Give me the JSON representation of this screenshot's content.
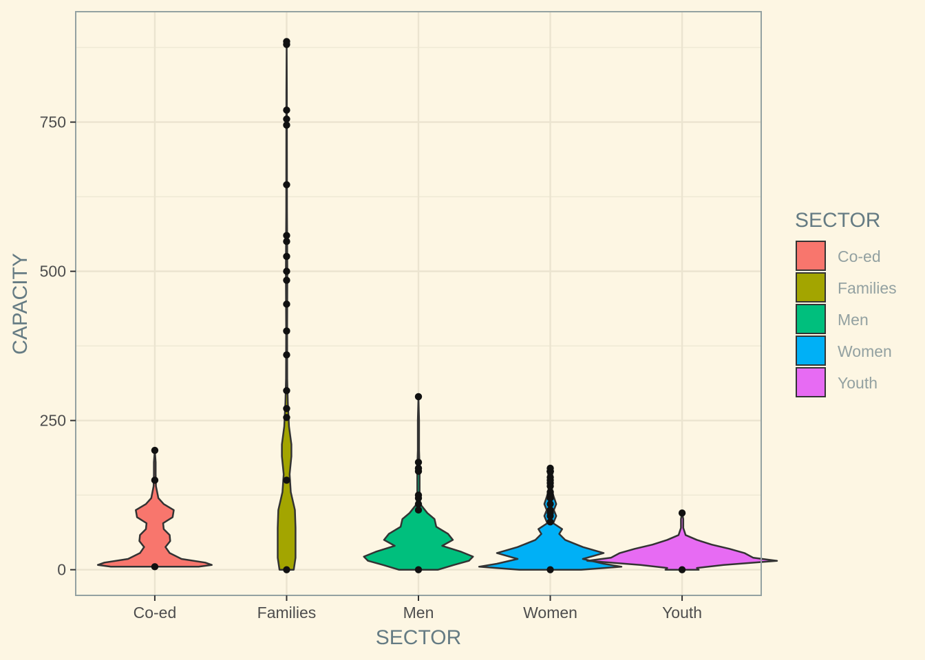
{
  "chart_data": {
    "type": "violin",
    "xlabel": "SECTOR",
    "ylabel": "CAPACITY",
    "ylim": [
      -43,
      935
    ],
    "y_ticks": [
      0,
      250,
      500,
      750
    ],
    "y_minor_ticks": [
      125,
      375,
      625,
      875
    ],
    "grid": true,
    "legend": {
      "title": "SECTOR",
      "position": "right"
    },
    "categories": [
      "Co-ed",
      "Families",
      "Men",
      "Women",
      "Youth"
    ],
    "colors": {
      "Co-ed": "#f8766d",
      "Families": "#a3a500",
      "Men": "#00bf7d",
      "Women": "#00b0f6",
      "Youth": "#e76bf3"
    },
    "violins": [
      {
        "name": "Co-ed",
        "min": 5,
        "max": 200,
        "profile": [
          [
            5,
            0.74
          ],
          [
            8,
            0.96
          ],
          [
            12,
            0.85
          ],
          [
            18,
            0.45
          ],
          [
            28,
            0.25
          ],
          [
            38,
            0.18
          ],
          [
            48,
            0.26
          ],
          [
            58,
            0.25
          ],
          [
            68,
            0.15
          ],
          [
            78,
            0.14
          ],
          [
            88,
            0.3
          ],
          [
            100,
            0.32
          ],
          [
            110,
            0.15
          ],
          [
            120,
            0.06
          ],
          [
            140,
            0.02
          ],
          [
            160,
            0.015
          ],
          [
            180,
            0.015
          ],
          [
            200,
            0.0
          ]
        ],
        "points": [
          5,
          150,
          200
        ]
      },
      {
        "name": "Families",
        "min": 0,
        "max": 885,
        "profile": [
          [
            0,
            0.12
          ],
          [
            20,
            0.15
          ],
          [
            40,
            0.15
          ],
          [
            70,
            0.15
          ],
          [
            100,
            0.14
          ],
          [
            130,
            0.07
          ],
          [
            160,
            0.05
          ],
          [
            190,
            0.08
          ],
          [
            210,
            0.08
          ],
          [
            240,
            0.04
          ],
          [
            280,
            0.02
          ],
          [
            320,
            0.01
          ],
          [
            400,
            0.008
          ],
          [
            500,
            0.012
          ],
          [
            600,
            0.006
          ],
          [
            700,
            0.005
          ],
          [
            800,
            0.004
          ],
          [
            885,
            0.0
          ]
        ],
        "points": [
          0,
          150,
          255,
          270,
          300,
          360,
          400,
          445,
          485,
          500,
          525,
          550,
          560,
          645,
          745,
          755,
          770,
          880,
          885
        ]
      },
      {
        "name": "Men",
        "min": 0,
        "max": 290,
        "profile": [
          [
            0,
            0.33
          ],
          [
            8,
            0.6
          ],
          [
            15,
            0.85
          ],
          [
            22,
            0.92
          ],
          [
            30,
            0.72
          ],
          [
            40,
            0.4
          ],
          [
            50,
            0.58
          ],
          [
            60,
            0.5
          ],
          [
            72,
            0.3
          ],
          [
            85,
            0.27
          ],
          [
            95,
            0.15
          ],
          [
            110,
            0.03
          ],
          [
            130,
            0.02
          ],
          [
            170,
            0.02
          ],
          [
            200,
            0.01
          ],
          [
            250,
            0.01
          ],
          [
            290,
            0.0
          ]
        ],
        "points": [
          0,
          100,
          110,
          120,
          125,
          165,
          170,
          180,
          290
        ]
      },
      {
        "name": "Women",
        "min": 0,
        "max": 170,
        "profile": [
          [
            0,
            0.52
          ],
          [
            5,
            1.2
          ],
          [
            10,
            0.9
          ],
          [
            18,
            0.55
          ],
          [
            28,
            0.9
          ],
          [
            38,
            0.55
          ],
          [
            50,
            0.25
          ],
          [
            60,
            0.15
          ],
          [
            68,
            0.2
          ],
          [
            78,
            0.05
          ],
          [
            90,
            0.1
          ],
          [
            100,
            0.06
          ],
          [
            110,
            0.1
          ],
          [
            125,
            0.05
          ],
          [
            140,
            0.02
          ],
          [
            155,
            0.02
          ],
          [
            165,
            0.05
          ],
          [
            170,
            0.0
          ]
        ],
        "points": [
          0,
          80,
          90,
          95,
          100,
          110,
          120,
          125,
          130,
          140,
          145,
          150,
          155,
          165,
          170
        ]
      },
      {
        "name": "Youth",
        "min": 0,
        "max": 95,
        "profile": [
          [
            0,
            0.28
          ],
          [
            3,
            0.25
          ],
          [
            8,
            0.7
          ],
          [
            15,
            1.6
          ],
          [
            20,
            1.2
          ],
          [
            28,
            1.05
          ],
          [
            35,
            0.8
          ],
          [
            42,
            0.5
          ],
          [
            50,
            0.25
          ],
          [
            58,
            0.06
          ],
          [
            70,
            0.02
          ],
          [
            85,
            0.02
          ],
          [
            95,
            0.0
          ]
        ],
        "points": [
          0,
          95
        ]
      }
    ]
  }
}
